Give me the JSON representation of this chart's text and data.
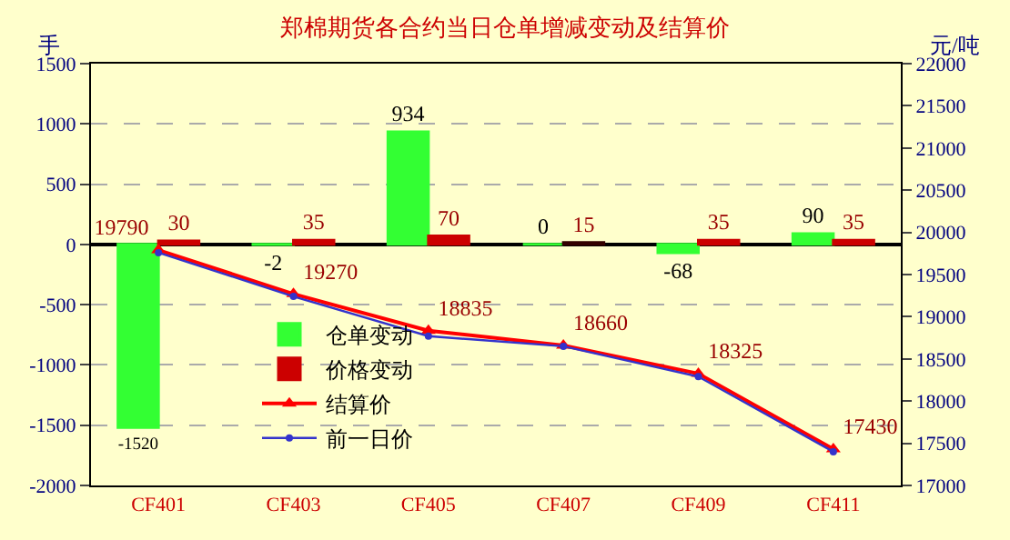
{
  "chart_data": {
    "type": "bar",
    "title": "郑棉期货各合约当日仓单增减变动及结算价",
    "ylabel": "手",
    "y2label": "元/吨",
    "categories": [
      "CF401",
      "CF403",
      "CF405",
      "CF407",
      "CF409",
      "CF411"
    ],
    "series": [
      {
        "name": "仓单变动",
        "color": "#33ff33",
        "values": [
          -1520,
          -2,
          934,
          0,
          -68,
          90
        ],
        "value_labels": [
          "-1520",
          "-2",
          "934",
          "0",
          "-68",
          "90"
        ]
      },
      {
        "name": "价格变动",
        "color": "#cc0000",
        "colors": [
          "#cc0000",
          "#cc0000",
          "#cc0000",
          "#330000",
          "#cc0000",
          "#cc0000"
        ],
        "values": [
          30,
          35,
          70,
          15,
          35,
          35
        ],
        "value_labels": [
          "30",
          "35",
          "70",
          "15",
          "35",
          "35"
        ]
      },
      {
        "name": "结算价",
        "type": "line",
        "axis": "y2",
        "color": "#ff0000",
        "marker": "triangle",
        "values": [
          19790,
          19270,
          18835,
          18660,
          18325,
          17430
        ],
        "value_labels": [
          "19790",
          "19270",
          "18835",
          "18660",
          "18325",
          "17430"
        ]
      },
      {
        "name": "前一日价",
        "type": "line",
        "axis": "y2",
        "color": "#3333cc",
        "marker": "circle",
        "values": [
          19760,
          19240,
          18770,
          18650,
          18290,
          17400
        ]
      }
    ],
    "ylim": [
      -2000,
      1500
    ],
    "yticks": [
      -2000,
      -1500,
      -1000,
      -500,
      0,
      500,
      1000,
      1500
    ],
    "y2lim": [
      17000,
      22000
    ],
    "y2ticks": [
      17000,
      17500,
      18000,
      18500,
      19000,
      19500,
      20000,
      20500,
      21000,
      21500,
      22000
    ],
    "grid": "y",
    "legend": "bottom left",
    "line_style": "solid"
  }
}
